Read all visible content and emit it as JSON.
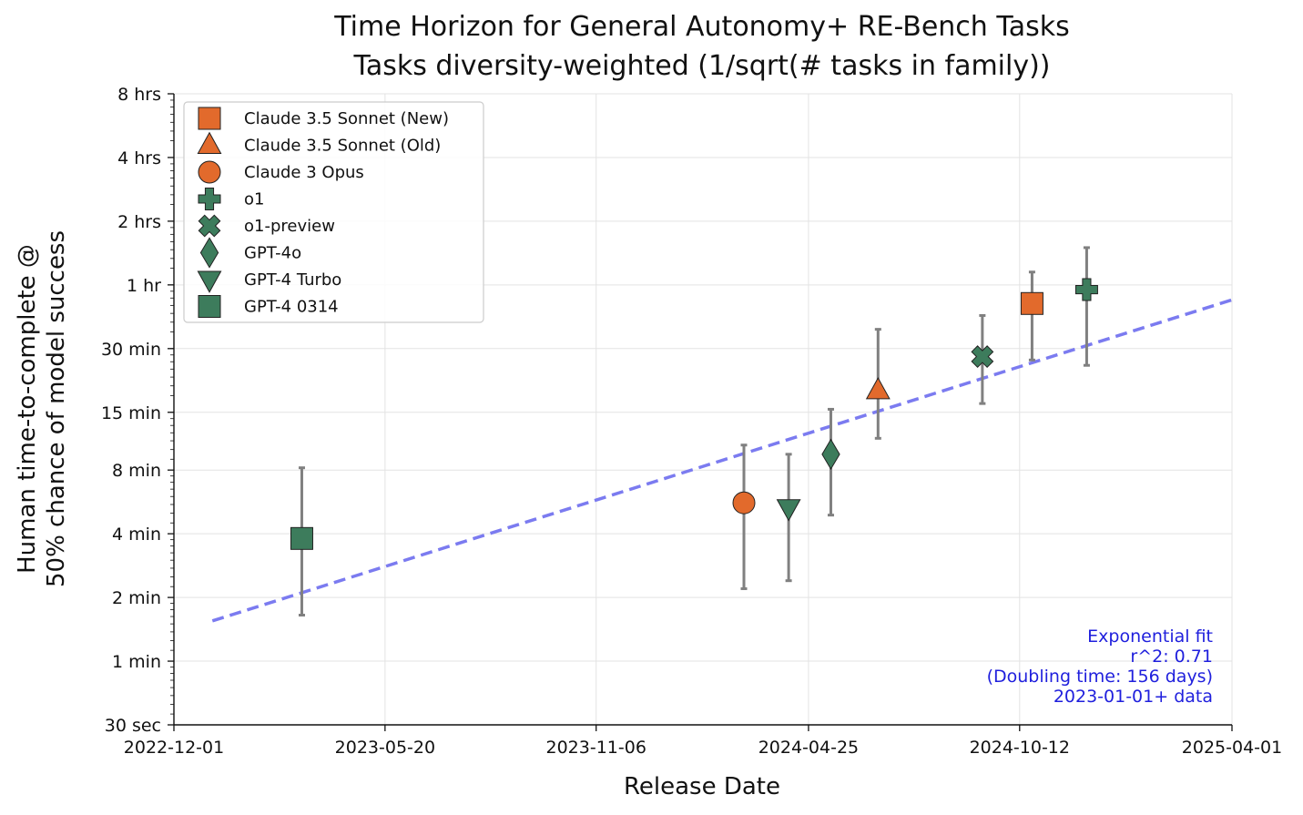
{
  "chart_data": {
    "type": "scatter",
    "title": "Time Horizon for General Autonomy+ RE-Bench Tasks",
    "subtitle": "Tasks diversity-weighted (1/sqrt(# tasks in family))",
    "xlabel": "Release Date",
    "ylabel_line1": "Human time-to-complete @",
    "ylabel_line2": "50% chance of model success",
    "y_scale": "log2",
    "y_unit": "minutes",
    "ylim": [
      0.5,
      480
    ],
    "xlim": [
      "2022-12-01",
      "2025-04-01"
    ],
    "grid": true,
    "legend_position": "top-left",
    "x_ticks": [
      "2022-12-01",
      "2023-05-20",
      "2023-11-06",
      "2024-04-25",
      "2024-10-12",
      "2025-04-01"
    ],
    "y_ticks": [
      {
        "value": 0.5,
        "label": "30 sec"
      },
      {
        "value": 1,
        "label": "1 min"
      },
      {
        "value": 2,
        "label": "2 min"
      },
      {
        "value": 4,
        "label": "4 min"
      },
      {
        "value": 8,
        "label": "8 min"
      },
      {
        "value": 15,
        "label": "15 min"
      },
      {
        "value": 30,
        "label": "30 min"
      },
      {
        "value": 60,
        "label": "1 hr"
      },
      {
        "value": 120,
        "label": "2 hrs"
      },
      {
        "value": 240,
        "label": "4 hrs"
      },
      {
        "value": 480,
        "label": "8 hrs"
      }
    ],
    "colors": {
      "anthropic": "#e26a2c",
      "openai": "#3d7c5c",
      "fit": "#7b7bf0",
      "errorbar": "#808080",
      "fit_text": "#1f1fdd"
    },
    "series": [
      {
        "name": "Claude 3.5 Sonnet (New)",
        "marker": "square",
        "color": "#e26a2c",
        "x": "2024-10-22",
        "y": 49,
        "y_low": 26.5,
        "y_high": 69
      },
      {
        "name": "Claude 3.5 Sonnet (Old)",
        "marker": "triangle-up",
        "color": "#e26a2c",
        "x": "2024-06-20",
        "y": 19,
        "y_low": 11.3,
        "y_high": 37
      },
      {
        "name": "Claude 3 Opus",
        "marker": "circle",
        "color": "#e26a2c",
        "x": "2024-03-04",
        "y": 5.6,
        "y_low": 2.2,
        "y_high": 10.5
      },
      {
        "name": "o1",
        "marker": "plus",
        "color": "#3d7c5c",
        "x": "2024-12-05",
        "y": 57,
        "y_low": 25,
        "y_high": 90
      },
      {
        "name": "o1-preview",
        "marker": "x",
        "color": "#3d7c5c",
        "x": "2024-09-12",
        "y": 27.5,
        "y_low": 16.5,
        "y_high": 43
      },
      {
        "name": "GPT-4o",
        "marker": "diamond",
        "color": "#3d7c5c",
        "x": "2024-05-13",
        "y": 9.5,
        "y_low": 4.9,
        "y_high": 15.5
      },
      {
        "name": "GPT-4 Turbo",
        "marker": "triangle-down",
        "color": "#3d7c5c",
        "x": "2024-04-09",
        "y": 5.3,
        "y_low": 2.4,
        "y_high": 9.5
      },
      {
        "name": "GPT-4 0314",
        "marker": "square",
        "color": "#3d7c5c",
        "x": "2023-03-14",
        "y": 3.8,
        "y_low": 1.65,
        "y_high": 8.2
      }
    ],
    "fit_line": {
      "x": [
        "2023-01-01",
        "2025-04-01"
      ],
      "y": [
        1.55,
        51
      ]
    },
    "annotation": [
      "Exponential fit",
      "r^2: 0.71",
      "(Doubling time: 156 days)",
      "2023-01-01+ data"
    ]
  }
}
